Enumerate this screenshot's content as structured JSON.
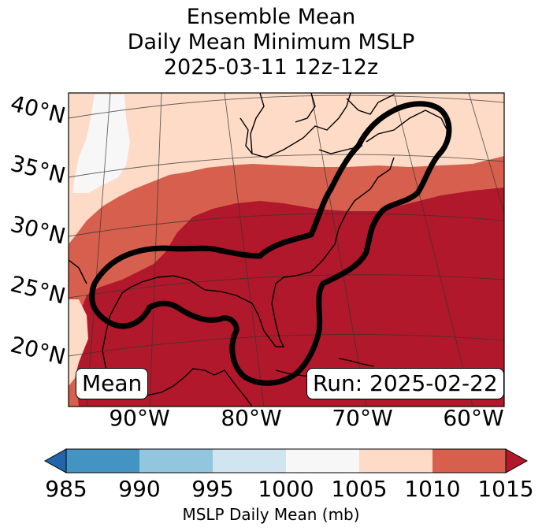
{
  "title": {
    "line1": "Ensemble Mean",
    "line2": "Daily Mean Minimum MSLP",
    "line3": "2025-03-11 12z-12z"
  },
  "map": {
    "latitude_labels": [
      "40°N",
      "35°N",
      "30°N",
      "25°N",
      "20°N"
    ],
    "longitude_labels": [
      "90°W",
      "80°W",
      "70°W",
      "60°W"
    ],
    "mean_box": "Mean",
    "run_box": "Run: 2025-02-22",
    "contour_value_mb": 1015
  },
  "colorbar": {
    "ticks": [
      "985",
      "990",
      "995",
      "1000",
      "1005",
      "1010",
      "1015"
    ],
    "label": "MSLP Daily Mean (mb)",
    "bins": [
      {
        "range": "<985",
        "color": "#2166ac"
      },
      {
        "range": "985-990",
        "color": "#4393c3"
      },
      {
        "range": "990-995",
        "color": "#92c5de"
      },
      {
        "range": "995-1000",
        "color": "#d1e5f0"
      },
      {
        "range": "1000-1005",
        "color": "#f7f7f7"
      },
      {
        "range": "1005-1010",
        "color": "#fddbc7"
      },
      {
        "range": "1010-1015",
        "color": "#d6604d"
      },
      {
        "range": ">1015",
        "color": "#b2182b"
      }
    ]
  }
}
